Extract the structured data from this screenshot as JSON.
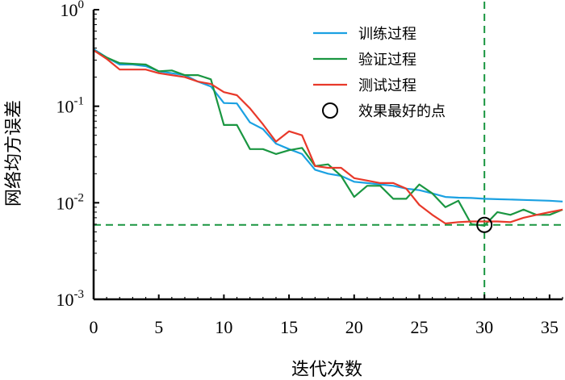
{
  "chart_data": {
    "type": "line",
    "xlabel": "迭代次数",
    "ylabel": "网络均方误差",
    "x_ticks": [
      0,
      5,
      10,
      15,
      20,
      25,
      30,
      35
    ],
    "y_ticks": [
      {
        "value": 1,
        "base": "10",
        "exp": "0"
      },
      {
        "value": 0.1,
        "base": "10",
        "exp": "-1"
      },
      {
        "value": 0.01,
        "base": "10",
        "exp": "-2"
      },
      {
        "value": 0.001,
        "base": "10",
        "exp": "-3"
      }
    ],
    "xlim": [
      0,
      36
    ],
    "ylim": [
      0.001,
      1
    ],
    "y_scale": "log",
    "legend_position": "top-right",
    "series": [
      {
        "name": "训练过程",
        "color": "#1ba1e2",
        "x": [
          0,
          1,
          2,
          3,
          4,
          5,
          6,
          7,
          8,
          9,
          10,
          11,
          12,
          13,
          14,
          15,
          16,
          17,
          18,
          19,
          20,
          21,
          22,
          23,
          24,
          25,
          26,
          27,
          28,
          29,
          30,
          31,
          32,
          33,
          34,
          35,
          36
        ],
        "y": [
          0.39,
          0.32,
          0.27,
          0.27,
          0.26,
          0.23,
          0.22,
          0.21,
          0.18,
          0.16,
          0.108,
          0.107,
          0.068,
          0.058,
          0.041,
          0.036,
          0.032,
          0.022,
          0.02,
          0.019,
          0.0165,
          0.016,
          0.0155,
          0.015,
          0.014,
          0.0135,
          0.0125,
          0.0115,
          0.0113,
          0.0112,
          0.011,
          0.0109,
          0.0108,
          0.0107,
          0.0106,
          0.0105,
          0.0103
        ]
      },
      {
        "name": "验证过程",
        "color": "#1a9641",
        "x": [
          0,
          1,
          2,
          3,
          4,
          5,
          6,
          7,
          8,
          9,
          10,
          11,
          12,
          13,
          14,
          15,
          16,
          17,
          18,
          19,
          20,
          21,
          22,
          23,
          24,
          25,
          26,
          27,
          28,
          29,
          30,
          31,
          32,
          33,
          34,
          35,
          36
        ],
        "y": [
          0.38,
          0.32,
          0.28,
          0.275,
          0.27,
          0.23,
          0.235,
          0.21,
          0.21,
          0.19,
          0.064,
          0.064,
          0.036,
          0.036,
          0.032,
          0.035,
          0.037,
          0.024,
          0.025,
          0.019,
          0.0115,
          0.015,
          0.015,
          0.011,
          0.011,
          0.0155,
          0.0125,
          0.009,
          0.0105,
          0.006,
          0.0058,
          0.008,
          0.0075,
          0.0085,
          0.0075,
          0.0075,
          0.0085
        ]
      },
      {
        "name": "测试过程",
        "color": "#e8392a",
        "x": [
          0,
          1,
          2,
          3,
          4,
          5,
          6,
          7,
          8,
          9,
          10,
          11,
          12,
          13,
          14,
          15,
          16,
          17,
          18,
          19,
          20,
          21,
          22,
          23,
          24,
          25,
          26,
          27,
          28,
          29,
          30,
          31,
          32,
          33,
          34,
          35,
          36
        ],
        "y": [
          0.38,
          0.31,
          0.24,
          0.24,
          0.24,
          0.22,
          0.21,
          0.2,
          0.18,
          0.17,
          0.14,
          0.13,
          0.095,
          0.065,
          0.043,
          0.055,
          0.05,
          0.024,
          0.023,
          0.023,
          0.018,
          0.017,
          0.016,
          0.016,
          0.014,
          0.0095,
          0.0075,
          0.0061,
          0.0063,
          0.0064,
          0.0064,
          0.0064,
          0.0063,
          0.007,
          0.0075,
          0.008,
          0.0085
        ]
      }
    ],
    "best_point": {
      "name": "效果最好的点",
      "x": 30,
      "y": 0.0059
    },
    "reference_lines": {
      "vertical_x": 30,
      "horizontal_y": 0.0059,
      "color": "#1a9641"
    }
  }
}
